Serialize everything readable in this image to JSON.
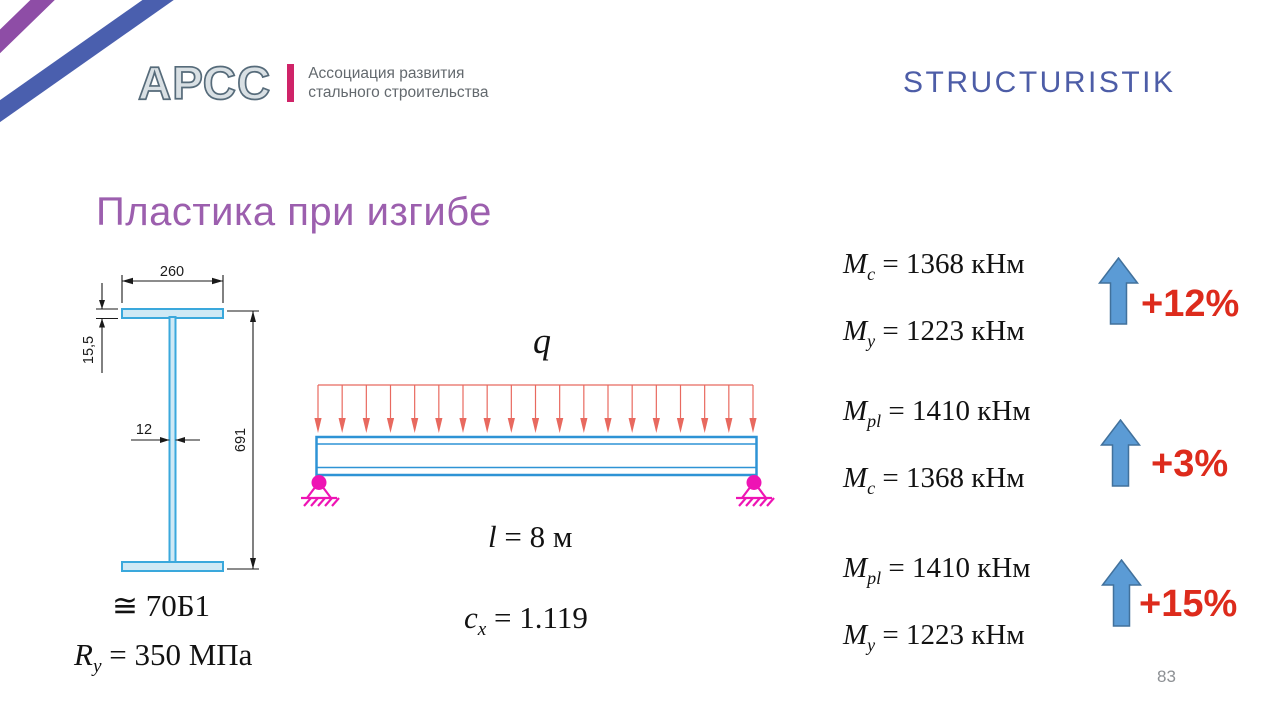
{
  "header": {
    "logo": {
      "text": "АРСС",
      "tagline_line1": "Ассоциация развития",
      "tagline_line2": "стального строительства"
    },
    "brand": "STRUCTURISTIK"
  },
  "title": "Пластика при изгибе",
  "cross_section": {
    "dim_width": "260",
    "dim_flange": "15,5",
    "dim_web": "12",
    "dim_height": "691",
    "profile": "≅ 70Б1",
    "steel": {
      "base": "R",
      "sub": "y",
      "rest": " = 350 МПа"
    }
  },
  "beam": {
    "load_label": "q",
    "arrow_count": 19,
    "length": {
      "base": "l",
      "rest": " = 8 м"
    },
    "cx": {
      "base": "c",
      "sub": "x",
      "rest": " = 1.119"
    }
  },
  "results": {
    "blocks": [
      {
        "lines": [
          {
            "base": "M",
            "sub": "c",
            "rest": " = 1368 кНм"
          },
          {
            "base": "M",
            "sub": "y",
            "rest": " = 1223 кНм"
          }
        ],
        "delta": "+12%"
      },
      {
        "lines": [
          {
            "base": "M",
            "sub": "pl",
            "rest": " = 1410 кНм"
          },
          {
            "base": "M",
            "sub": "c",
            "rest": " = 1368 кНм"
          }
        ],
        "delta": "+3%"
      },
      {
        "lines": [
          {
            "base": "M",
            "sub": "pl",
            "rest": " = 1410 кНм"
          },
          {
            "base": "M",
            "sub": "y",
            "rest": " = 1223 кНм"
          }
        ],
        "delta": "+15%"
      }
    ]
  },
  "page_number": "83",
  "colors": {
    "title_purple": "#9c5fae",
    "brand_blue": "#4d5da7",
    "stripe_purple": "#8e4da6",
    "stripe_blue": "#4a5fae",
    "logo_gray": "#566b7a",
    "logo_pink": "#cf2368",
    "tagline_gray": "#63696e",
    "section_cyan": "#3aa8dc",
    "section_fill": "#cfe9f5",
    "beam_blue": "#2e93d5",
    "load_red": "#e8695f",
    "support_magenta": "#ee14b4",
    "big_arrow_fill": "#5b9bd5",
    "big_arrow_stroke": "#41719c",
    "delta_red": "#dd2b1c",
    "dim_black": "#1a1a1a",
    "page_gray": "#8d9094"
  }
}
